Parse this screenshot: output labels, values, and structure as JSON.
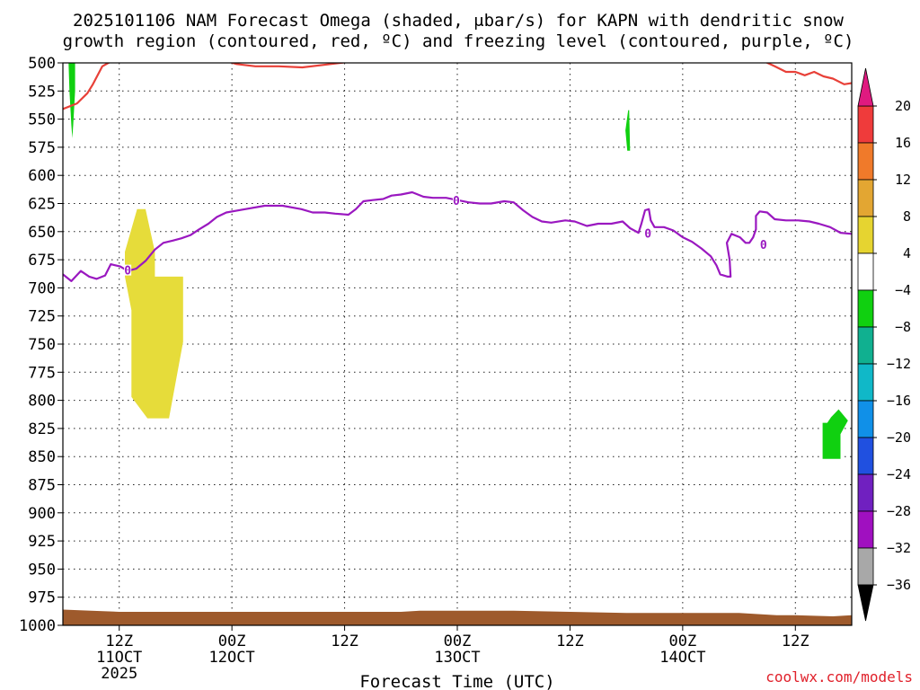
{
  "chart_data": {
    "type": "time-height contour",
    "title_line1": "2025101106 NAM Forecast Omega (shaded, μbar/s) for KAPN with dendritic snow",
    "title_line2": "growth region (contoured, red, ºC) and freezing level (contoured, purple, ºC)",
    "xlabel": "Forecast Time (UTC)",
    "credit": "coolwx.com/models",
    "y_axis": {
      "scale": "pressure (inverted)",
      "ylim": [
        1000,
        500
      ],
      "ticks": [
        500,
        525,
        550,
        575,
        600,
        625,
        650,
        675,
        700,
        725,
        750,
        775,
        800,
        825,
        850,
        875,
        900,
        925,
        950,
        975,
        1000
      ]
    },
    "x_axis": {
      "range_hours": [
        0,
        84
      ],
      "ticks": [
        {
          "hour": 6,
          "line1": "12Z",
          "line2": "11OCT",
          "line3": "2025"
        },
        {
          "hour": 18,
          "line1": "00Z",
          "line2": "12OCT",
          "line3": ""
        },
        {
          "hour": 30,
          "line1": "12Z",
          "line2": "",
          "line3": ""
        },
        {
          "hour": 42,
          "line1": "00Z",
          "line2": "13OCT",
          "line3": ""
        },
        {
          "hour": 54,
          "line1": "12Z",
          "line2": "",
          "line3": ""
        },
        {
          "hour": 66,
          "line1": "00Z",
          "line2": "14OCT",
          "line3": ""
        },
        {
          "hour": 78,
          "line1": "12Z",
          "line2": "",
          "line3": ""
        }
      ]
    },
    "grid": true,
    "colorbar": {
      "labels": [
        "20",
        "16",
        "12",
        "8",
        "4",
        "−4",
        "−8",
        "−12",
        "−16",
        "−20",
        "−24",
        "−28",
        "−32",
        "−36"
      ],
      "colors": [
        "#ef3b3b",
        "#f07a2a",
        "#e3a632",
        "#e6d430",
        "#ffffff",
        "#10d010",
        "#10b090",
        "#10b8c8",
        "#1090e8",
        "#2050e0",
        "#7020c0",
        "#a010c0",
        "#a8a8a8"
      ],
      "top_arrow_color": "#e01a80",
      "bottom_arrow_color": "#000000"
    },
    "omega_regions": [
      {
        "name": "yellow 4-8",
        "color": "#e6dc3a",
        "points": [
          [
            7.9,
            630
          ],
          [
            8.8,
            630
          ],
          [
            9.8,
            668
          ],
          [
            9.8,
            690
          ],
          [
            12.8,
            690
          ],
          [
            12.8,
            748
          ],
          [
            11.3,
            816
          ],
          [
            9.0,
            816
          ],
          [
            7.3,
            797
          ],
          [
            7.3,
            720
          ],
          [
            6.6,
            690
          ],
          [
            6.6,
            668
          ]
        ]
      },
      {
        "name": "green -4 to -8 a",
        "color": "#10d010",
        "points": [
          [
            0.6,
            500
          ],
          [
            1.3,
            500
          ],
          [
            1.3,
            525
          ],
          [
            1.1,
            555
          ],
          [
            1.0,
            567
          ],
          [
            0.9,
            555
          ],
          [
            0.7,
            525
          ]
        ]
      },
      {
        "name": "green -4 to -8 b",
        "color": "#10d010",
        "points": [
          [
            60.2,
            542
          ],
          [
            60.3,
            542
          ],
          [
            60.4,
            578
          ],
          [
            60.1,
            578
          ],
          [
            59.9,
            560
          ]
        ]
      },
      {
        "name": "green -4 to -8 c",
        "color": "#10d010",
        "points": [
          [
            81.4,
            820
          ],
          [
            81.8,
            815
          ],
          [
            82.6,
            808
          ],
          [
            83.6,
            818
          ],
          [
            82.8,
            830
          ],
          [
            82.8,
            852
          ],
          [
            80.9,
            852
          ],
          [
            80.9,
            820
          ]
        ]
      }
    ],
    "dgz_line": {
      "name": "dendritic snow growth region",
      "color": "#e84038",
      "segments": [
        [
          [
            0.0,
            541
          ],
          [
            1.5,
            536
          ],
          [
            2.6,
            527
          ],
          [
            3.2,
            519
          ],
          [
            4.2,
            503
          ],
          [
            5.5,
            497
          ],
          [
            7.8,
            490
          ]
        ],
        [
          [
            16.0,
            495
          ],
          [
            18.5,
            501
          ],
          [
            20.5,
            503
          ],
          [
            23.0,
            503
          ],
          [
            25.5,
            504
          ],
          [
            28.5,
            501
          ],
          [
            31.5,
            498
          ],
          [
            34.0,
            495
          ]
        ],
        [
          [
            73.5,
            494
          ],
          [
            75.8,
            503
          ],
          [
            77.0,
            508
          ],
          [
            78.0,
            508
          ],
          [
            79.0,
            511
          ],
          [
            80.0,
            508
          ],
          [
            81.0,
            512
          ],
          [
            82.0,
            514
          ],
          [
            83.2,
            519
          ],
          [
            84.0,
            518
          ]
        ]
      ]
    },
    "freezing_line": {
      "name": "freezing level",
      "color": "#9a18c0",
      "label": "0",
      "segments": [
        [
          [
            0.0,
            688
          ],
          [
            0.9,
            694
          ],
          [
            1.9,
            685
          ],
          [
            2.8,
            690
          ],
          [
            3.6,
            692
          ],
          [
            4.5,
            689
          ],
          [
            5.1,
            679
          ],
          [
            6.1,
            681
          ],
          [
            6.9,
            685
          ],
          [
            7.8,
            683
          ],
          [
            8.8,
            676
          ],
          [
            9.8,
            666
          ],
          [
            10.7,
            660
          ],
          [
            11.7,
            658
          ],
          [
            12.6,
            656
          ],
          [
            13.6,
            653
          ],
          [
            14.5,
            648
          ],
          [
            15.5,
            643
          ],
          [
            16.4,
            637
          ],
          [
            17.4,
            633
          ],
          [
            19.4,
            630
          ],
          [
            21.5,
            627
          ],
          [
            23.4,
            627
          ],
          [
            25.4,
            630
          ],
          [
            26.6,
            633
          ],
          [
            27.9,
            633
          ],
          [
            29.0,
            634
          ],
          [
            30.4,
            635
          ],
          [
            31.2,
            630
          ],
          [
            32.0,
            623
          ],
          [
            33.0,
            622
          ],
          [
            34.1,
            621
          ],
          [
            35.0,
            618
          ],
          [
            36.0,
            617
          ],
          [
            37.2,
            615
          ],
          [
            38.4,
            619
          ],
          [
            39.4,
            620
          ],
          [
            40.8,
            620
          ],
          [
            42.0,
            622
          ],
          [
            43.2,
            624
          ],
          [
            44.4,
            625
          ],
          [
            45.6,
            625
          ],
          [
            47.0,
            623
          ],
          [
            48.0,
            624
          ],
          [
            49.0,
            631
          ],
          [
            50.0,
            637
          ],
          [
            51.0,
            641
          ],
          [
            52.0,
            642
          ],
          [
            53.5,
            640
          ],
          [
            54.5,
            641
          ],
          [
            55.8,
            645
          ],
          [
            57.0,
            643
          ],
          [
            58.4,
            643
          ],
          [
            59.6,
            641
          ],
          [
            60.4,
            647
          ],
          [
            61.3,
            651
          ],
          [
            61.6,
            643
          ],
          [
            62.0,
            631
          ],
          [
            62.4,
            630
          ],
          [
            62.6,
            640
          ],
          [
            63.0,
            646
          ],
          [
            64.0,
            646
          ],
          [
            65.0,
            649
          ],
          [
            66.0,
            655
          ],
          [
            67.0,
            659
          ],
          [
            68.0,
            665
          ],
          [
            69.0,
            672
          ],
          [
            69.6,
            680
          ],
          [
            70.0,
            688
          ],
          [
            70.8,
            690
          ],
          [
            71.1,
            690
          ],
          [
            71.0,
            675
          ],
          [
            70.7,
            660
          ],
          [
            71.2,
            652
          ],
          [
            72.1,
            655
          ],
          [
            72.7,
            660
          ],
          [
            73.1,
            660
          ],
          [
            73.5,
            655
          ],
          [
            73.8,
            648
          ],
          [
            73.8,
            636
          ],
          [
            74.2,
            632
          ],
          [
            75.0,
            633
          ],
          [
            75.8,
            639
          ],
          [
            77.0,
            640
          ],
          [
            78.3,
            640
          ],
          [
            79.5,
            641
          ],
          [
            80.5,
            643
          ],
          [
            81.7,
            646
          ],
          [
            82.8,
            651
          ],
          [
            84.0,
            652
          ]
        ]
      ],
      "label_points": [
        [
          6.9,
          685
        ],
        [
          41.9,
          623
        ],
        [
          62.3,
          652
        ],
        [
          74.6,
          662
        ]
      ]
    },
    "terrain": {
      "color": "#9e5a2c",
      "top": [
        [
          0.0,
          986
        ],
        [
          3.0,
          987
        ],
        [
          6.0,
          988
        ],
        [
          12.0,
          988
        ],
        [
          18.0,
          988
        ],
        [
          24.0,
          988
        ],
        [
          30.0,
          988
        ],
        [
          36.0,
          988
        ],
        [
          38.0,
          987
        ],
        [
          42.0,
          987
        ],
        [
          48.0,
          987
        ],
        [
          54.0,
          988
        ],
        [
          60.0,
          989
        ],
        [
          66.0,
          989
        ],
        [
          72.0,
          989
        ],
        [
          76.0,
          991
        ],
        [
          78.0,
          991
        ],
        [
          82.0,
          992
        ],
        [
          84.0,
          991
        ]
      ]
    }
  }
}
